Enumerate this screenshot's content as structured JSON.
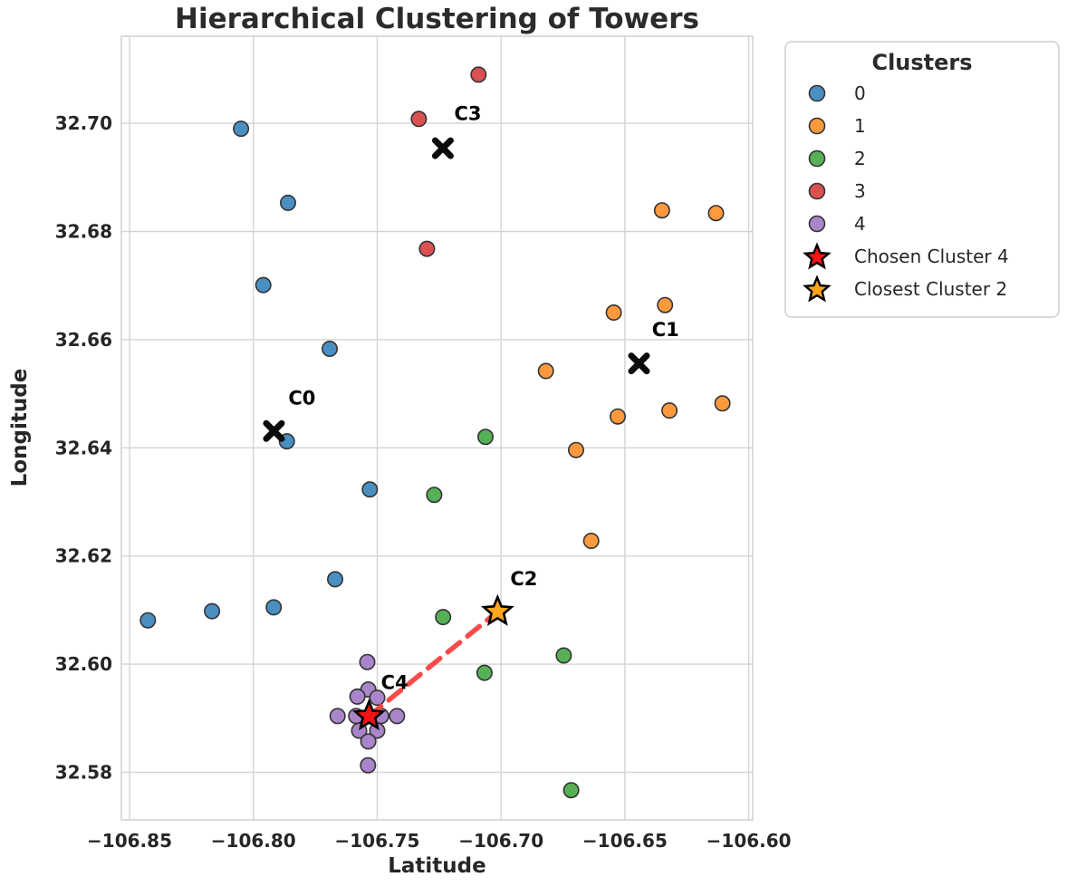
{
  "chart_data": {
    "type": "scatter",
    "title": "Hierarchical Clustering of Towers",
    "xlabel": "Latitude",
    "ylabel": "Longitude",
    "xlim": [
      -106.8533,
      -106.5984
    ],
    "ylim": [
      32.5712,
      32.7161
    ],
    "grid": true,
    "xticks": [
      {
        "v": -106.85,
        "label": "−106.85"
      },
      {
        "v": -106.8,
        "label": "−106.80"
      },
      {
        "v": -106.75,
        "label": "−106.75"
      },
      {
        "v": -106.7,
        "label": "−106.70"
      },
      {
        "v": -106.65,
        "label": "−106.65"
      },
      {
        "v": -106.6,
        "label": "−106.60"
      }
    ],
    "yticks": [
      {
        "v": 32.58,
        "label": "32.58"
      },
      {
        "v": 32.6,
        "label": "32.60"
      },
      {
        "v": 32.62,
        "label": "32.62"
      },
      {
        "v": 32.64,
        "label": "32.64"
      },
      {
        "v": 32.66,
        "label": "32.66"
      },
      {
        "v": 32.68,
        "label": "32.68"
      },
      {
        "v": 32.7,
        "label": "32.70"
      }
    ],
    "colors": {
      "grid": "#d4d4d4",
      "spine": "#cccccc",
      "marker_edge": "#333333",
      "centroid": "#0b0b0b",
      "connection_line": "#fa3c3c",
      "star_edge": "#000000",
      "text": "#262626"
    },
    "series": [
      {
        "label": "0",
        "color": "#4a8fc2",
        "points": [
          [
            -106.805,
            32.699
          ],
          [
            -106.786,
            32.6853
          ],
          [
            -106.796,
            32.6701
          ],
          [
            -106.7692,
            32.6583
          ],
          [
            -106.7865,
            32.6412
          ],
          [
            -106.753,
            32.6323
          ],
          [
            -106.767,
            32.6157
          ],
          [
            -106.7918,
            32.6105
          ],
          [
            -106.8167,
            32.6098
          ],
          [
            -106.8426,
            32.6081
          ]
        ]
      },
      {
        "label": "1",
        "color": "#ff993e",
        "points": [
          [
            -106.635,
            32.6839
          ],
          [
            -106.6132,
            32.6834
          ],
          [
            -106.6338,
            32.6664
          ],
          [
            -106.6545,
            32.665
          ],
          [
            -106.6819,
            32.6542
          ],
          [
            -106.6106,
            32.6482
          ],
          [
            -106.632,
            32.6469
          ],
          [
            -106.6529,
            32.6458
          ],
          [
            -106.6697,
            32.6396
          ],
          [
            -106.6636,
            32.6228
          ]
        ]
      },
      {
        "label": "2",
        "color": "#56b056",
        "points": [
          [
            -106.7063,
            32.642
          ],
          [
            -106.727,
            32.6313
          ],
          [
            -106.7234,
            32.6087
          ],
          [
            -106.6747,
            32.6016
          ],
          [
            -106.7067,
            32.5984
          ],
          [
            -106.6717,
            32.5767
          ]
        ]
      },
      {
        "label": "3",
        "color": "#db5152",
        "points": [
          [
            -106.7091,
            32.709
          ],
          [
            -106.7332,
            32.7008
          ],
          [
            -106.7299,
            32.6768
          ]
        ]
      },
      {
        "label": "4",
        "color": "#a985ca",
        "points": [
          [
            -106.754,
            32.6004
          ],
          [
            -106.7536,
            32.5953
          ],
          [
            -106.758,
            32.594
          ],
          [
            -106.75,
            32.5938
          ],
          [
            -106.766,
            32.5904
          ],
          [
            -106.7585,
            32.5904
          ],
          [
            -106.7484,
            32.5904
          ],
          [
            -106.742,
            32.5904
          ],
          [
            -106.7573,
            32.5877
          ],
          [
            -106.75,
            32.5877
          ],
          [
            -106.7536,
            32.5857
          ],
          [
            -106.7537,
            32.5813
          ]
        ]
      }
    ],
    "centroids": [
      {
        "name": "C0",
        "x": -106.7917,
        "y": 32.6431,
        "label_x": -106.7804,
        "label_y": 32.6492
      },
      {
        "name": "C1",
        "x": -106.6443,
        "y": 32.6556,
        "label_x": -106.6336,
        "label_y": 32.6618
      },
      {
        "name": "C3",
        "x": -106.7235,
        "y": 32.6954,
        "label_x": -106.7134,
        "label_y": 32.7018
      }
    ],
    "stars": [
      {
        "name": "C4",
        "legend_label": "Chosen Cluster 4",
        "color": "#f21414",
        "x": -106.7533,
        "y": 32.5904,
        "label_x": -106.743,
        "label_y": 32.5966
      },
      {
        "name": "C2",
        "legend_label": "Closest Cluster 2",
        "color": "#ffa51e",
        "x": -106.7014,
        "y": 32.6097,
        "label_x": -106.6908,
        "label_y": 32.6158
      }
    ],
    "connection": {
      "from": [
        -106.7533,
        32.5904
      ],
      "to": [
        -106.7014,
        32.6097
      ],
      "style": "dashed",
      "color": "#fa3c3c"
    },
    "legend": {
      "title": "Clusters",
      "position": "outside-upper-right",
      "entries": [
        {
          "label": "0",
          "marker": "circle",
          "color": "#4a8fc2"
        },
        {
          "label": "1",
          "marker": "circle",
          "color": "#ff993e"
        },
        {
          "label": "2",
          "marker": "circle",
          "color": "#56b056"
        },
        {
          "label": "3",
          "marker": "circle",
          "color": "#db5152"
        },
        {
          "label": "4",
          "marker": "circle",
          "color": "#a985ca"
        },
        {
          "label": "Chosen Cluster 4",
          "marker": "star",
          "color": "#f21414"
        },
        {
          "label": "Closest Cluster 2",
          "marker": "star",
          "color": "#ffa51e"
        }
      ]
    }
  }
}
